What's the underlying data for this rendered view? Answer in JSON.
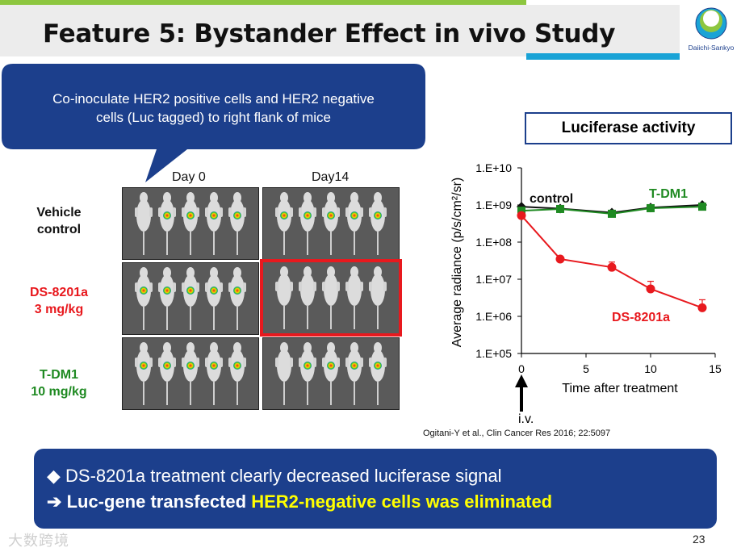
{
  "header": {
    "title": "Feature 5: Bystander Effect in vivo Study",
    "logo_text": "Daiichi-Sankyo"
  },
  "callout": {
    "text_line1": "Co-inoculate HER2 positive cells and HER2 negative",
    "text_line2": "cells (Luc tagged) to right flank of mice"
  },
  "imaging": {
    "columns": [
      "Day 0",
      "Day14"
    ],
    "rows": [
      {
        "label_line1": "Vehicle",
        "label_line2": "control",
        "color": "#111111"
      },
      {
        "label_line1": "DS-8201a",
        "label_line2": "3 mg/kg",
        "color": "#e8191e"
      },
      {
        "label_line1": "T-DM1",
        "label_line2": "10 mg/kg",
        "color": "#1f8a22"
      }
    ],
    "highlight_color": "#e8191e"
  },
  "luciferase_title": "Luciferase activity",
  "chart_data": {
    "type": "line",
    "title": "",
    "xlabel": "Time after treatment",
    "ylabel": "Average radiance (p/s/cm²/sr)",
    "xlim": [
      0,
      15
    ],
    "xticks": [
      "0",
      "5",
      "10",
      "15"
    ],
    "ylim_log10": [
      5,
      10
    ],
    "yticks": [
      "1.E+05",
      "1.E+06",
      "1.E+07",
      "1.E+08",
      "1.E+09",
      "1.E+10"
    ],
    "arrow_label": "i.v.",
    "series": [
      {
        "name": "control",
        "color": "#111111",
        "marker": "diamond",
        "x": [
          0,
          3,
          7,
          10,
          14
        ],
        "y": [
          900000000,
          800000000,
          620000000,
          850000000,
          1000000000
        ]
      },
      {
        "name": "T-DM1",
        "color": "#1f8a22",
        "marker": "square",
        "x": [
          0,
          3,
          7,
          10,
          14
        ],
        "y": [
          700000000,
          780000000,
          580000000,
          820000000,
          900000000
        ]
      },
      {
        "name": "DS-8201a",
        "color": "#e8191e",
        "marker": "circle",
        "x": [
          0,
          3,
          7,
          10,
          14
        ],
        "y": [
          520000000,
          35000000,
          21000000,
          5500000,
          1700000
        ],
        "err_upper": [
          0,
          0,
          29000000,
          8800000,
          2800000
        ]
      }
    ]
  },
  "citation": "Ogitani-Y et al., Clin Cancer Res 2016; 22:5097",
  "summary": {
    "line1": "DS-8201a treatment clearly decreased luciferase signal",
    "line2_arrow": "➔",
    "line2_white": "Luc-gene transfected",
    "line2_yellow": "HER2-negative cells was eliminated"
  },
  "footer": {
    "page_number": "23",
    "watermark": "大数跨境"
  }
}
